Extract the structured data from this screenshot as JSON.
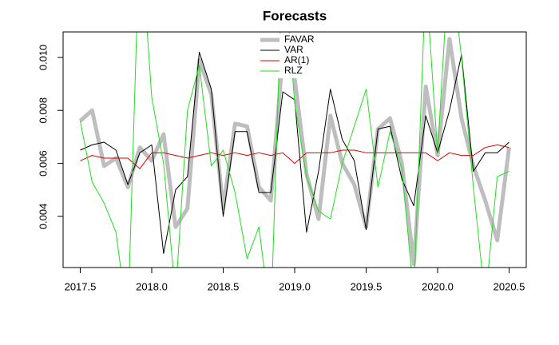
{
  "chart_data": {
    "type": "line",
    "title": "Forecasts",
    "x": [
      2017.5,
      2017.583,
      2017.667,
      2017.75,
      2017.833,
      2017.917,
      2018,
      2018.083,
      2018.167,
      2018.25,
      2018.333,
      2018.417,
      2018.5,
      2018.583,
      2018.667,
      2018.75,
      2018.833,
      2018.917,
      2019,
      2019.083,
      2019.167,
      2019.25,
      2019.333,
      2019.417,
      2019.5,
      2019.583,
      2019.667,
      2019.75,
      2019.833,
      2019.917,
      2020,
      2020.083,
      2020.167,
      2020.25,
      2020.333,
      2020.417,
      2020.5
    ],
    "series": [
      {
        "name": "FAVAR",
        "color": "#bebebe",
        "width": 5,
        "values": [
          0.0076,
          0.008,
          0.0059,
          0.0062,
          0.0051,
          0.0066,
          0.0061,
          0.0071,
          0.0036,
          0.0043,
          0.0099,
          0.0086,
          0.0043,
          0.0075,
          0.0074,
          0.0051,
          0.0046,
          0.0101,
          0.0092,
          0.0056,
          0.0039,
          0.0078,
          0.006,
          0.0052,
          0.0036,
          0.0073,
          0.0077,
          0.006,
          0.0022,
          0.0089,
          0.0063,
          0.0107,
          0.0077,
          0.0059,
          0.0046,
          0.0031,
          0.0066
        ]
      },
      {
        "name": "VAR",
        "color": "#000000",
        "width": 1,
        "values": [
          0.0065,
          0.0067,
          0.0068,
          0.0065,
          0.0052,
          0.0064,
          0.0067,
          0.0026,
          0.005,
          0.0055,
          0.0102,
          0.0088,
          0.004,
          0.0072,
          0.0072,
          0.0049,
          0.0049,
          0.0087,
          0.0084,
          0.0034,
          0.0057,
          0.0088,
          0.0069,
          0.0061,
          0.0035,
          0.0073,
          0.0074,
          0.0054,
          0.0044,
          0.0078,
          0.0064,
          0.008,
          0.0101,
          0.0057,
          0.0064,
          0.0064,
          0.0068
        ]
      },
      {
        "name": "AR(1)",
        "color": "#dd0000",
        "width": 1,
        "values": [
          0.0061,
          0.0063,
          0.0062,
          0.0062,
          0.0062,
          0.0058,
          0.0064,
          0.0064,
          0.0063,
          0.0062,
          0.0063,
          0.0064,
          0.0063,
          0.0064,
          0.0063,
          0.0064,
          0.0063,
          0.0064,
          0.006,
          0.0064,
          0.0064,
          0.0064,
          0.0065,
          0.0065,
          0.0064,
          0.0064,
          0.0064,
          0.0064,
          0.0064,
          0.0064,
          0.0061,
          0.0064,
          0.0063,
          0.0063,
          0.0066,
          0.0067,
          0.0066
        ]
      },
      {
        "name": "RLZ",
        "color": "#22dd22",
        "width": 1,
        "values": [
          0.0076,
          0.0053,
          0.0045,
          0.0034,
          0.0,
          0.015,
          0.0085,
          0.006,
          0.001,
          0.008,
          0.0097,
          0.0059,
          0.0065,
          0.0049,
          0.0024,
          0.0036,
          0.0,
          0.014,
          0.0083,
          0.0055,
          0.0042,
          0.0039,
          0.006,
          0.0074,
          0.0088,
          0.0051,
          0.0072,
          0.0058,
          0.001,
          0.013,
          0.0064,
          0.014,
          0.01,
          0.0051,
          0.0008,
          0.0055,
          0.0057
        ]
      }
    ],
    "xlim": [
      2017.38,
      2020.62
    ],
    "xticks": [
      2017.5,
      {
        "value": 2018,
        "label": "2018.0"
      },
      2018.5,
      {
        "value": 2019,
        "label": "2019.0"
      },
      2019.5,
      {
        "value": 2020,
        "label": "2020.0"
      },
      2020.5
    ],
    "ylim": [
      0.00207,
      0.01096
    ],
    "yticks": [
      0.004,
      0.006,
      0.008,
      {
        "value": 0.01,
        "label": "0.010"
      }
    ],
    "legend": "top"
  }
}
